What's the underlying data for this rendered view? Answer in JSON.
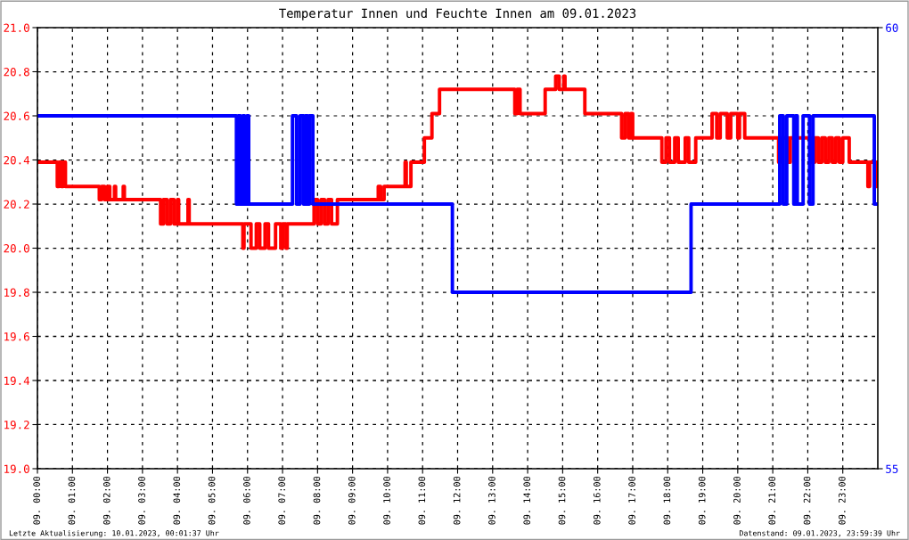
{
  "chart_data": {
    "type": "step",
    "title": "Temperatur Innen und Feuchte Innen am 09.01.2023",
    "annotations": [
      "Letzte Aktualisierung: 10.01.2023, 00:01:37 Uhr",
      "Datenstand: 09.01.2023, 23:59:39 Uhr"
    ],
    "xlim": [
      "2023-01-09T00:00",
      "2023-01-10T00:00"
    ],
    "xticks": [
      {
        "value": "2023-01-09T00:00",
        "label": "09. 00:00"
      },
      {
        "value": "2023-01-09T01:00",
        "label": "09. 01:00"
      },
      {
        "value": "2023-01-09T02:00",
        "label": "09. 02:00"
      },
      {
        "value": "2023-01-09T03:00",
        "label": "09. 03:00"
      },
      {
        "value": "2023-01-09T04:00",
        "label": "09. 04:00"
      },
      {
        "value": "2023-01-09T05:00",
        "label": "09. 05:00"
      },
      {
        "value": "2023-01-09T06:00",
        "label": "09. 06:00"
      },
      {
        "value": "2023-01-09T07:00",
        "label": "09. 07:00"
      },
      {
        "value": "2023-01-09T08:00",
        "label": "09. 08:00"
      },
      {
        "value": "2023-01-09T09:00",
        "label": "09. 09:00"
      },
      {
        "value": "2023-01-09T10:00",
        "label": "09. 10:00"
      },
      {
        "value": "2023-01-09T11:00",
        "label": "09. 11:00"
      },
      {
        "value": "2023-01-09T12:00",
        "label": "09. 12:00"
      },
      {
        "value": "2023-01-09T13:00",
        "label": "09. 13:00"
      },
      {
        "value": "2023-01-09T14:00",
        "label": "09. 14:00"
      },
      {
        "value": "2023-01-09T15:00",
        "label": "09. 15:00"
      },
      {
        "value": "2023-01-09T16:00",
        "label": "09. 16:00"
      },
      {
        "value": "2023-01-09T17:00",
        "label": "09. 17:00"
      },
      {
        "value": "2023-01-09T18:00",
        "label": "09. 18:00"
      },
      {
        "value": "2023-01-09T19:00",
        "label": "09. 19:00"
      },
      {
        "value": "2023-01-09T20:00",
        "label": "09. 20:00"
      },
      {
        "value": "2023-01-09T21:00",
        "label": "09. 21:00"
      },
      {
        "value": "2023-01-09T22:00",
        "label": "09. 22:00"
      },
      {
        "value": "2023-01-09T23:00",
        "label": "09. 23:00"
      }
    ],
    "ylim": [
      19,
      21
    ],
    "yticks": [
      {
        "value": 19,
        "label": "19.0"
      },
      19.2,
      19.4,
      19.6,
      19.8,
      {
        "value": 20,
        "label": "20.0"
      },
      20.2,
      20.4,
      20.6,
      20.8,
      {
        "value": 21,
        "label": "21.0"
      }
    ],
    "y2lim": [
      55,
      60
    ],
    "y2ticks": [
      55,
      60
    ],
    "grid": true,
    "line_style": "solid",
    "series": [
      {
        "color": "#ff0000",
        "x": [
          "2023-01-09T00:00",
          "2023-01-09T00:34",
          "2023-01-09T00:37",
          "2023-01-09T00:41",
          "2023-01-09T00:44",
          "2023-01-09T00:48",
          "2023-01-09T01:46",
          "2023-01-09T01:50",
          "2023-01-09T01:55",
          "2023-01-09T02:00",
          "2023-01-09T02:04",
          "2023-01-09T02:12",
          "2023-01-09T02:14",
          "2023-01-09T02:27",
          "2023-01-09T02:29",
          "2023-01-09T03:31",
          "2023-01-09T03:36",
          "2023-01-09T03:42",
          "2023-01-09T03:48",
          "2023-01-09T03:54",
          "2023-01-09T04:00",
          "2023-01-09T04:02",
          "2023-01-09T04:18",
          "2023-01-09T04:20",
          "2023-01-09T05:52",
          "2023-01-09T05:54",
          "2023-01-09T06:06",
          "2023-01-09T06:15",
          "2023-01-09T06:21",
          "2023-01-09T06:30",
          "2023-01-09T06:36",
          "2023-01-09T06:48",
          "2023-01-09T06:57",
          "2023-01-09T07:00",
          "2023-01-09T07:06",
          "2023-01-09T07:08",
          "2023-01-09T07:54",
          "2023-01-09T08:00",
          "2023-01-09T08:06",
          "2023-01-09T08:12",
          "2023-01-09T08:18",
          "2023-01-09T08:24",
          "2023-01-09T08:34",
          "2023-01-09T08:36",
          "2023-01-09T09:44",
          "2023-01-09T09:48",
          "2023-01-09T09:54",
          "2023-01-09T10:30",
          "2023-01-09T10:32",
          "2023-01-09T10:40",
          "2023-01-09T11:03",
          "2023-01-09T11:16",
          "2023-01-09T11:29",
          "2023-01-09T13:38",
          "2023-01-09T13:42",
          "2023-01-09T13:47",
          "2023-01-09T14:30",
          "2023-01-09T14:48",
          "2023-01-09T14:54",
          "2023-01-09T15:02",
          "2023-01-09T15:04",
          "2023-01-09T15:38",
          "2023-01-09T16:41",
          "2023-01-09T16:47",
          "2023-01-09T16:53",
          "2023-01-09T16:57",
          "2023-01-09T17:00",
          "2023-01-09T17:50",
          "2023-01-09T17:57",
          "2023-01-09T18:03",
          "2023-01-09T18:12",
          "2023-01-09T18:18",
          "2023-01-09T18:30",
          "2023-01-09T18:36",
          "2023-01-09T18:48",
          "2023-01-09T19:16",
          "2023-01-09T19:24",
          "2023-01-09T19:30",
          "2023-01-09T19:42",
          "2023-01-09T19:48",
          "2023-01-09T20:00",
          "2023-01-09T20:03",
          "2023-01-09T20:12",
          "2023-01-09T21:10",
          "2023-01-09T21:13",
          "2023-01-09T21:27",
          "2023-01-09T21:30",
          "2023-01-09T22:06",
          "2023-01-09T22:12",
          "2023-01-09T22:18",
          "2023-01-09T22:24",
          "2023-01-09T22:30",
          "2023-01-09T22:36",
          "2023-01-09T22:42",
          "2023-01-09T22:48",
          "2023-01-09T22:54",
          "2023-01-09T23:00",
          "2023-01-09T23:11",
          "2023-01-09T23:43",
          "2023-01-09T23:46",
          "2023-01-09T23:55",
          "2023-01-09T23:58",
          "2023-01-09T23:59"
        ],
        "values": [
          20.39,
          20.28,
          20.39,
          20.28,
          20.39,
          20.28,
          20.22,
          20.28,
          20.22,
          20.28,
          20.22,
          20.28,
          20.22,
          20.28,
          20.22,
          20.11,
          20.22,
          20.11,
          20.22,
          20.11,
          20.22,
          20.11,
          20.22,
          20.11,
          20.0,
          20.11,
          20.0,
          20.11,
          20.0,
          20.11,
          20.0,
          20.11,
          20.0,
          20.11,
          20.0,
          20.11,
          20.22,
          20.11,
          20.22,
          20.11,
          20.22,
          20.11,
          20.22,
          20.22,
          20.28,
          20.22,
          20.28,
          20.39,
          20.28,
          20.39,
          20.5,
          20.61,
          20.72,
          20.61,
          20.72,
          20.61,
          20.72,
          20.78,
          20.72,
          20.78,
          20.72,
          20.61,
          20.5,
          20.61,
          20.5,
          20.61,
          20.5,
          20.39,
          20.5,
          20.39,
          20.5,
          20.39,
          20.5,
          20.39,
          20.5,
          20.61,
          20.5,
          20.61,
          20.5,
          20.61,
          20.5,
          20.61,
          20.5,
          20.39,
          20.5,
          20.39,
          20.5,
          20.39,
          20.5,
          20.39,
          20.5,
          20.39,
          20.5,
          20.39,
          20.5,
          20.39,
          20.5,
          20.39,
          20.28,
          20.39,
          20.28,
          20.39,
          20.39
        ]
      },
      {
        "color": "#0000ff",
        "axis": "y2",
        "x": [
          "2023-01-09T00:00",
          "2023-01-09T05:41",
          "2023-01-09T05:44",
          "2023-01-09T05:48",
          "2023-01-09T05:52",
          "2023-01-09T05:55",
          "2023-01-09T05:59",
          "2023-01-09T06:02",
          "2023-01-09T07:17",
          "2023-01-09T07:24",
          "2023-01-09T07:30",
          "2023-01-09T07:36",
          "2023-01-09T07:39",
          "2023-01-09T07:43",
          "2023-01-09T07:46",
          "2023-01-09T07:52",
          "2023-01-09T11:51",
          "2023-01-09T18:40",
          "2023-01-09T21:12",
          "2023-01-09T21:18",
          "2023-01-09T21:24",
          "2023-01-09T21:36",
          "2023-01-09T21:39",
          "2023-01-09T21:42",
          "2023-01-09T21:52",
          "2023-01-09T22:03",
          "2023-01-09T22:09",
          "2023-01-09T23:54",
          "2023-01-09T23:59"
        ],
        "values": [
          59,
          58,
          59,
          58,
          59,
          58,
          59,
          58,
          59,
          58,
          59,
          58,
          59,
          58,
          59,
          58,
          57,
          58,
          59,
          58,
          59,
          58,
          59,
          58,
          59,
          58,
          59,
          58,
          58
        ]
      }
    ]
  }
}
